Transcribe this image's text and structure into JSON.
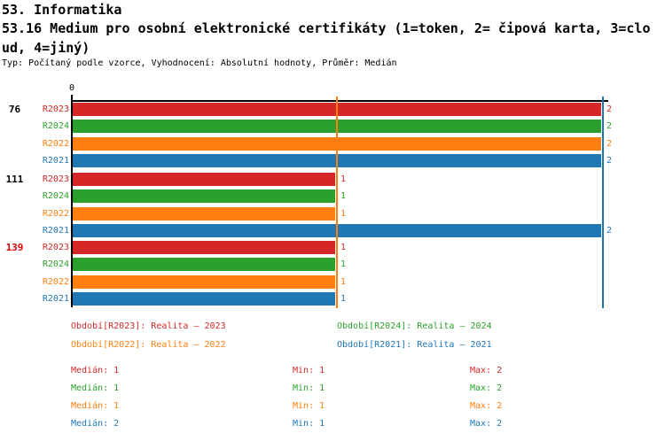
{
  "header": {
    "line1": "53. Informatika",
    "line2": "53.16 Medium pro osobní elektronické certifikáty (1=token, 2= čipová karta, 3=clo",
    "line3": "ud, 4=jiný)",
    "meta": "Typ: Počítaný podle vzorce, Vyhodnocení: Absolutní hodnoty, Průměr: Medián"
  },
  "chart_data": {
    "type": "bar",
    "orientation": "horizontal",
    "title": "53.16 Medium pro osobní elektronické certifikáty (1=token, 2= čipová karta, 3=cloud, 4=jiný)",
    "xlim": [
      0,
      2
    ],
    "x_ticks": [
      {
        "value": 0,
        "label": "0"
      }
    ],
    "series_order": [
      "R2023",
      "R2024",
      "R2022",
      "R2021"
    ],
    "series_colors": {
      "R2023": "#d62728",
      "R2024": "#2ca02c",
      "R2022": "#ff7f0e",
      "R2021": "#1f77b4"
    },
    "groups": [
      {
        "label": "76",
        "label_color": "#000000",
        "values": {
          "R2023": 2,
          "R2024": 2,
          "R2022": 2,
          "R2021": 2
        }
      },
      {
        "label": "111",
        "label_color": "#000000",
        "values": {
          "R2023": 1,
          "R2024": 1,
          "R2022": 1,
          "R2021": 2
        }
      },
      {
        "label": "139",
        "label_color": "#dd0000",
        "values": {
          "R2023": 1,
          "R2024": 1,
          "R2022": 1,
          "R2021": 1
        }
      }
    ],
    "reference_lines": [
      {
        "name": "median-line-1",
        "value": 1,
        "color": "#ff7f0e"
      },
      {
        "name": "median-line-2",
        "value": 2,
        "color": "#1f77b4"
      }
    ],
    "axis_color": "#000000"
  },
  "legend": {
    "items": [
      {
        "series": "R2023",
        "label": "Období[R2023]: Realita – 2023",
        "color": "#d62728",
        "col": 0,
        "row": 0
      },
      {
        "series": "R2024",
        "label": "Období[R2024]: Realita – 2024",
        "color": "#2ca02c",
        "col": 1,
        "row": 0
      },
      {
        "series": "R2022",
        "label": "Období[R2022]: Realita – 2022",
        "color": "#ff7f0e",
        "col": 0,
        "row": 1
      },
      {
        "series": "R2021",
        "label": "Období[R2021]: Realita – 2021",
        "color": "#1f77b4",
        "col": 1,
        "row": 1
      }
    ]
  },
  "stats": {
    "rows": [
      {
        "series": "R2023",
        "color": "#d62728",
        "median": "Medián: 1",
        "min": "Min: 1",
        "max": "Max: 2"
      },
      {
        "series": "R2024",
        "color": "#2ca02c",
        "median": "Medián: 1",
        "min": "Min: 1",
        "max": "Max: 2"
      },
      {
        "series": "R2022",
        "color": "#ff7f0e",
        "median": "Medián: 1",
        "min": "Min: 1",
        "max": "Max: 2"
      },
      {
        "series": "R2021",
        "color": "#1f77b4",
        "median": "Medián: 2",
        "min": "Min: 1",
        "max": "Max: 2"
      }
    ]
  }
}
